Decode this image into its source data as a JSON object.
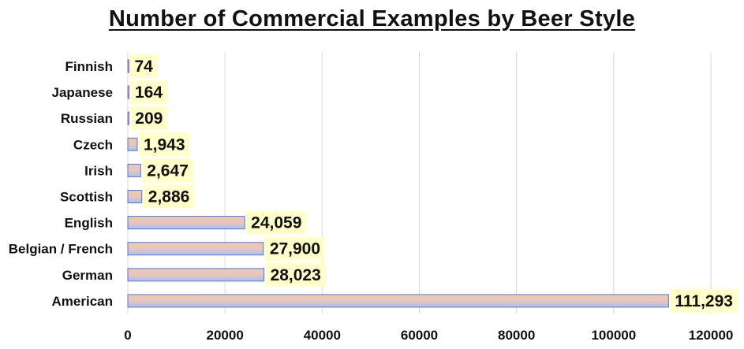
{
  "chart_data": {
    "type": "bar",
    "orientation": "horizontal",
    "title": "Number of Commercial Examples by Beer Style",
    "categories": [
      "Finnish",
      "Japanese",
      "Russian",
      "Czech",
      "Irish",
      "Scottish",
      "English",
      "Belgian / French",
      "German",
      "American"
    ],
    "values": [
      74,
      164,
      209,
      1943,
      2647,
      2886,
      24059,
      27900,
      28023,
      111293
    ],
    "data_labels": [
      "74",
      "164",
      "209",
      "1,943",
      "2,647",
      "2,886",
      "24,059",
      "27,900",
      "28,023",
      "111,293"
    ],
    "xlim": [
      0,
      120000
    ],
    "x_ticks": [
      "0",
      "20000",
      "40000",
      "60000",
      "80000",
      "100000",
      "120000"
    ],
    "grid": true,
    "colors": {
      "bar_top": "#f2c9a8",
      "bar_bottom": "#a9c1ec",
      "bar_border": "#5b77c4",
      "label_bg": "#ffffcc",
      "gridline": "#d9d9d9"
    }
  }
}
